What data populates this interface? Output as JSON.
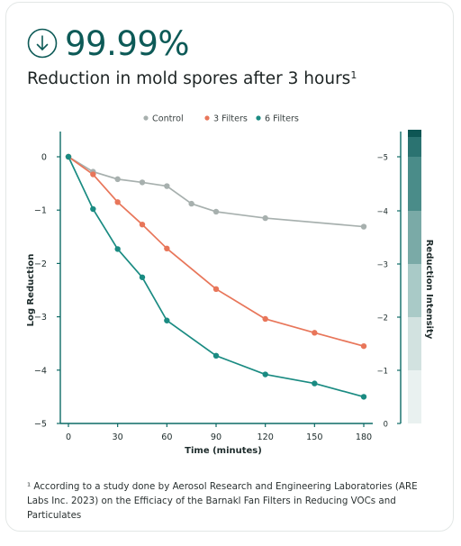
{
  "headline": {
    "stat": "99.99%",
    "icon": "down-arrow-circle-icon"
  },
  "subtitle": {
    "text": "Reduction in mold spores after 3 hours",
    "marker": "1"
  },
  "colors": {
    "accent": "#0d5a57",
    "control": "#a7b0ae",
    "three_filters": "#e8765a",
    "six_filters": "#1a8b82",
    "axis": "#0d6b66"
  },
  "chart_data": {
    "type": "line",
    "xlabel": "Time (minutes)",
    "ylabel": "Log Reduction",
    "y2label": "Reduction Intensity",
    "xlim": [
      0,
      180
    ],
    "ylim": [
      -5,
      0
    ],
    "x_ticks": [
      "0",
      "30",
      "60",
      "90",
      "120",
      "150",
      "180"
    ],
    "y_ticks": [
      "0",
      "−1",
      "−2",
      "−3",
      "−4",
      "−5"
    ],
    "y2_ticks": [
      "0",
      "−1",
      "−2",
      "−3",
      "−4",
      "−5"
    ],
    "legend_position": "top-center",
    "series": [
      {
        "name": "Control",
        "color": "#a7b0ae",
        "x": [
          0,
          15,
          30,
          45,
          60,
          75,
          90,
          120,
          180
        ],
        "y": [
          0,
          -0.28,
          -0.42,
          -0.48,
          -0.55,
          -0.88,
          -1.03,
          -1.15,
          -1.31
        ]
      },
      {
        "name": "3 Filters",
        "color": "#e8765a",
        "x": [
          0,
          15,
          30,
          45,
          60,
          90,
          120,
          150,
          180
        ],
        "y": [
          0,
          -0.33,
          -0.85,
          -1.27,
          -1.72,
          -2.48,
          -3.04,
          -3.3,
          -3.55
        ]
      },
      {
        "name": "6 Filters",
        "color": "#1a8b82",
        "x": [
          0,
          15,
          30,
          45,
          60,
          90,
          120,
          150,
          180
        ],
        "y": [
          0,
          -0.98,
          -1.73,
          -2.26,
          -3.07,
          -3.73,
          -4.08,
          -4.25,
          -4.5
        ]
      }
    ],
    "intensity_scale": [
      {
        "level": 0,
        "color": "#e9f1f0"
      },
      {
        "level": -1,
        "color": "#d2e2e0"
      },
      {
        "level": -2,
        "color": "#a9cac7"
      },
      {
        "level": -3,
        "color": "#7aaaa7"
      },
      {
        "level": -4,
        "color": "#4a8c89"
      },
      {
        "level": -5,
        "color": "#2b7371"
      },
      {
        "level": -5.5,
        "color": "#0e5654"
      }
    ]
  },
  "footnote": "¹ According to a study done by Aerosol Research and Engineering Laboratories (ARE Labs Inc. 2023) on the Efficiacy of the Barnakl Fan Filters in Reducing VOCs and Particulates"
}
